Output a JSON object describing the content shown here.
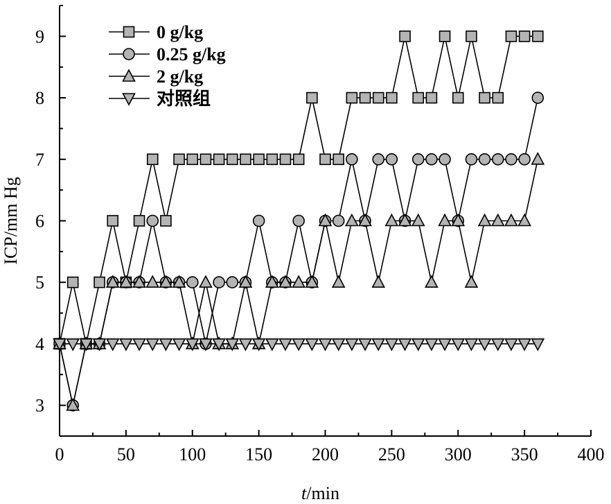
{
  "chart_data": {
    "type": "line",
    "xlabel_italic": "t",
    "xlabel_rest": "/min",
    "ylabel": "ICP/mm Hg",
    "xlim": [
      0,
      400
    ],
    "ylim": [
      2.5,
      9.5
    ],
    "xticks": [
      0,
      50,
      100,
      150,
      200,
      250,
      300,
      350,
      400
    ],
    "yticks": [
      3,
      4,
      5,
      6,
      7,
      8,
      9
    ],
    "legend_position": "top-left",
    "grid": false,
    "x": [
      0,
      10,
      20,
      30,
      40,
      50,
      60,
      70,
      80,
      90,
      100,
      110,
      120,
      130,
      140,
      150,
      160,
      170,
      180,
      190,
      200,
      210,
      220,
      230,
      240,
      250,
      260,
      270,
      280,
      290,
      300,
      310,
      320,
      330,
      340,
      350,
      360
    ],
    "series": [
      {
        "name": "0 g/kg",
        "marker": "square",
        "fill": "#b4b4b4",
        "values": [
          4,
          5,
          4,
          5,
          6,
          5,
          6,
          7,
          6,
          7,
          7,
          7,
          7,
          7,
          7,
          7,
          7,
          7,
          7,
          8,
          7,
          7,
          8,
          8,
          8,
          8,
          9,
          8,
          8,
          9,
          8,
          9,
          8,
          8,
          9,
          9,
          9
        ]
      },
      {
        "name": "0.25 g/kg",
        "marker": "circle",
        "fill": "#b4b4b4",
        "values": [
          4,
          3,
          4,
          4,
          5,
          5,
          5,
          6,
          5,
          5,
          5,
          4,
          5,
          5,
          5,
          6,
          5,
          5,
          6,
          5,
          6,
          6,
          7,
          6,
          7,
          7,
          6,
          7,
          7,
          7,
          6,
          7,
          7,
          7,
          7,
          7,
          8
        ]
      },
      {
        "name": "2 g/kg",
        "marker": "triangle-up",
        "fill": "#b4b4b4",
        "values": [
          4,
          3,
          4,
          4,
          5,
          5,
          5,
          5,
          5,
          5,
          4,
          5,
          4,
          4,
          5,
          4,
          5,
          5,
          5,
          5,
          6,
          5,
          6,
          6,
          5,
          6,
          6,
          6,
          5,
          6,
          6,
          5,
          6,
          6,
          6,
          6,
          7
        ]
      },
      {
        "name": "对照组",
        "marker": "triangle-down",
        "fill": "#b4b4b4",
        "values": [
          4,
          4,
          4,
          4,
          4,
          4,
          4,
          4,
          4,
          4,
          4,
          4,
          4,
          4,
          4,
          4,
          4,
          4,
          4,
          4,
          4,
          4,
          4,
          4,
          4,
          4,
          4,
          4,
          4,
          4,
          4,
          4,
          4,
          4,
          4,
          4,
          4
        ]
      }
    ]
  }
}
